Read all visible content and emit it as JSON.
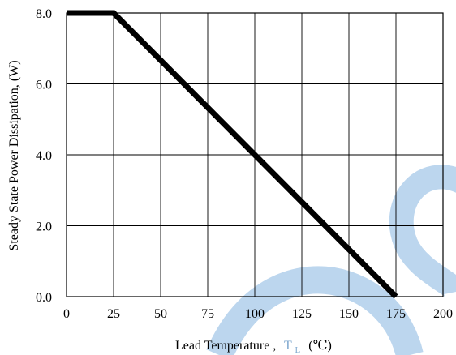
{
  "chart_data": {
    "type": "line",
    "title": "",
    "xlabel": {
      "main": "Lead Temperature ,",
      "symbol": "T",
      "subscript": "L",
      "unit": "(℃)"
    },
    "ylabel": "Steady State Power Dissipation, (W)",
    "x_ticks": [
      "0",
      "25",
      "50",
      "75",
      "100",
      "125",
      "150",
      "175",
      "200"
    ],
    "y_ticks": [
      "0.0",
      "2.0",
      "4.0",
      "6.0",
      "8.0"
    ],
    "xlim": [
      0,
      200
    ],
    "ylim": [
      0,
      8
    ],
    "grid": true,
    "legend": "none",
    "series": [
      {
        "x": [
          0,
          25,
          175
        ],
        "y": [
          8.0,
          8.0,
          0.0
        ],
        "color": "#000000"
      }
    ]
  },
  "colors": {
    "line": "#000000",
    "grid": "#000000",
    "watermark": "#bcd6ee",
    "subscript_accent": "#7fa8cf"
  }
}
